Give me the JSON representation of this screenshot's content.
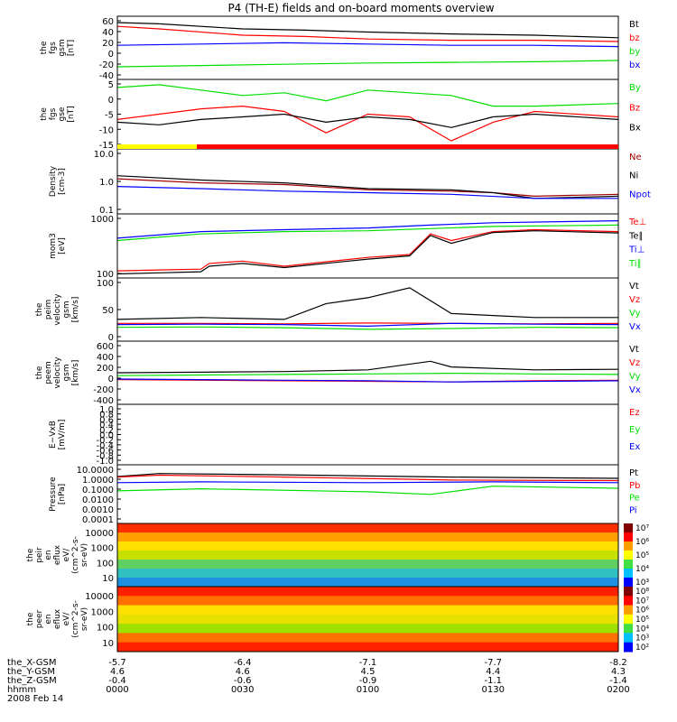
{
  "title": "P4 (TH-E) fields and on-board moments overview",
  "colors": {
    "black": "#000000",
    "red": "#ff0000",
    "green": "#00e000",
    "blue": "#0000ff",
    "yellow": "#ffff00",
    "darkred": "#a00000"
  },
  "chart_data": [
    {
      "type": "line",
      "ylabel": [
        "the",
        "fgs",
        "gsm",
        "[nT]"
      ],
      "ylim": [
        -40,
        60
      ],
      "yticks": [
        "60",
        "40",
        "20",
        "0",
        "-20",
        "-40"
      ],
      "legend": [
        {
          "name": "Bt",
          "color": "black"
        },
        {
          "name": "bz",
          "color": "red"
        },
        {
          "name": "by",
          "color": "green"
        },
        {
          "name": "bx",
          "color": "blue"
        }
      ],
      "series": [
        {
          "name": "Bt",
          "x": [
            0,
            10,
            30,
            45,
            60,
            80,
            100,
            120
          ],
          "y": [
            50,
            48,
            40,
            38,
            35,
            32,
            30,
            26
          ]
        },
        {
          "name": "bz",
          "x": [
            0,
            10,
            30,
            45,
            60,
            80,
            100,
            120
          ],
          "y": [
            44,
            40,
            30,
            28,
            24,
            22,
            22,
            20
          ]
        },
        {
          "name": "by",
          "x": [
            0,
            20,
            40,
            60,
            80,
            100,
            120
          ],
          "y": [
            -20,
            -18,
            -16,
            -14,
            -13,
            -12,
            -10
          ]
        },
        {
          "name": "bx",
          "x": [
            0,
            20,
            40,
            60,
            80,
            100,
            120
          ],
          "y": [
            14,
            16,
            18,
            16,
            14,
            14,
            12
          ]
        }
      ]
    },
    {
      "type": "line",
      "ylabel": [
        "the",
        "fgs",
        "gse",
        "[nT]"
      ],
      "ylim": [
        -18,
        8
      ],
      "yticks": [
        "5",
        "0",
        "-5",
        "-10",
        "-15"
      ],
      "legend": [
        {
          "name": "By",
          "color": "green"
        },
        {
          "name": "Bz",
          "color": "red"
        },
        {
          "name": "Bx",
          "color": "black"
        }
      ],
      "series": [
        {
          "name": "By",
          "x": [
            0,
            10,
            20,
            30,
            40,
            50,
            60,
            70,
            80,
            90,
            100,
            120
          ],
          "y": [
            5,
            6,
            4,
            2,
            3,
            0,
            4,
            3,
            2,
            -2,
            -2,
            -1
          ]
        },
        {
          "name": "Bz",
          "x": [
            0,
            10,
            20,
            30,
            40,
            50,
            60,
            70,
            80,
            90,
            100,
            120
          ],
          "y": [
            -7,
            -5,
            -3,
            -2,
            -4,
            -12,
            -5,
            -6,
            -15,
            -8,
            -4,
            -6
          ]
        },
        {
          "name": "Bx",
          "x": [
            0,
            10,
            20,
            30,
            40,
            50,
            60,
            70,
            80,
            90,
            100,
            120
          ],
          "y": [
            -8,
            -9,
            -7,
            -6,
            -5,
            -8,
            -6,
            -7,
            -10,
            -6,
            -5,
            -7
          ]
        }
      ]
    },
    {
      "type": "line",
      "log": true,
      "ylabel": [
        "Density",
        "[cm-3]"
      ],
      "ylim": [
        0.1,
        10
      ],
      "yticks": [
        "10.0",
        "1.0",
        "0.1"
      ],
      "legend": [
        {
          "name": "Ne",
          "color": "darkred"
        },
        {
          "name": "Ni",
          "color": "black"
        },
        {
          "name": "Npot",
          "color": "blue"
        }
      ],
      "series": [
        {
          "name": "Ne",
          "x": [
            0,
            20,
            40,
            60,
            80,
            90,
            100,
            120
          ],
          "y": [
            1.2,
            0.9,
            0.8,
            0.55,
            0.5,
            0.45,
            0.35,
            0.4
          ]
        },
        {
          "name": "Ni",
          "x": [
            0,
            20,
            40,
            60,
            80,
            90,
            100,
            120
          ],
          "y": [
            1.5,
            1.1,
            0.9,
            0.6,
            0.55,
            0.45,
            0.3,
            0.35
          ]
        },
        {
          "name": "Npot",
          "x": [
            0,
            20,
            40,
            60,
            80,
            100,
            120
          ],
          "y": [
            0.7,
            0.6,
            0.5,
            0.45,
            0.4,
            0.3,
            0.3
          ]
        }
      ]
    },
    {
      "type": "line",
      "log": true,
      "ylabel": [
        "mom3",
        "[eV]"
      ],
      "ylim": [
        80,
        12000
      ],
      "yticks": [
        "1000",
        "100"
      ],
      "legend": [
        {
          "name": "Te⊥",
          "color": "red"
        },
        {
          "name": "Te∥",
          "color": "black"
        },
        {
          "name": "Ti⊥",
          "color": "blue"
        },
        {
          "name": "Ti∥",
          "color": "green"
        }
      ],
      "series": [
        {
          "name": "Te⊥",
          "x": [
            0,
            10,
            20,
            22,
            30,
            40,
            60,
            70,
            75,
            80,
            90,
            100,
            120
          ],
          "y": [
            140,
            150,
            160,
            250,
            300,
            200,
            400,
            500,
            2500,
            1500,
            3000,
            3500,
            3000
          ]
        },
        {
          "name": "Te∥",
          "x": [
            0,
            10,
            20,
            22,
            30,
            40,
            60,
            70,
            75,
            80,
            90,
            100,
            120
          ],
          "y": [
            110,
            120,
            130,
            200,
            250,
            180,
            350,
            450,
            2200,
            1200,
            2800,
            3200,
            2700
          ]
        },
        {
          "name": "Ti⊥",
          "x": [
            0,
            20,
            40,
            60,
            75,
            90,
            120
          ],
          "y": [
            1800,
            3000,
            3500,
            4000,
            5000,
            6000,
            7000
          ]
        },
        {
          "name": "Ti∥",
          "x": [
            0,
            20,
            40,
            60,
            75,
            90,
            120
          ],
          "y": [
            1500,
            2500,
            3000,
            3200,
            3800,
            4500,
            5000
          ]
        }
      ]
    },
    {
      "type": "line",
      "ylabel": [
        "the",
        "peim",
        "velocity",
        "gsm",
        "[km/s]"
      ],
      "ylim": [
        -40,
        120
      ],
      "yticks": [
        "100",
        "50",
        "0"
      ],
      "legend": [
        {
          "name": "Vt",
          "color": "black"
        },
        {
          "name": "Vz",
          "color": "red"
        },
        {
          "name": "Vy",
          "color": "green"
        },
        {
          "name": "Vx",
          "color": "blue"
        }
      ],
      "series": [
        {
          "name": "Vt",
          "x": [
            0,
            20,
            40,
            50,
            60,
            70,
            80,
            90,
            100,
            120
          ],
          "y": [
            15,
            20,
            15,
            55,
            70,
            95,
            30,
            25,
            20,
            20
          ]
        },
        {
          "name": "Vz",
          "x": [
            0,
            20,
            40,
            60,
            80,
            100,
            120
          ],
          "y": [
            5,
            5,
            4,
            6,
            5,
            4,
            5
          ]
        },
        {
          "name": "Vy",
          "x": [
            0,
            20,
            40,
            60,
            80,
            100,
            120
          ],
          "y": [
            -5,
            -4,
            -6,
            -10,
            -8,
            -5,
            -6
          ]
        },
        {
          "name": "Vx",
          "x": [
            0,
            20,
            40,
            60,
            80,
            100,
            120
          ],
          "y": [
            2,
            3,
            2,
            -2,
            5,
            3,
            2
          ]
        }
      ]
    },
    {
      "type": "line",
      "ylabel": [
        "the",
        "peem",
        "velocity",
        "gsm",
        "[km/s]"
      ],
      "ylim": [
        -450,
        650
      ],
      "yticks": [
        "600",
        "400",
        "200",
        "0",
        "-200",
        "-400"
      ],
      "legend": [
        {
          "name": "Vt",
          "color": "black"
        },
        {
          "name": "Vz",
          "color": "red"
        },
        {
          "name": "Vy",
          "color": "green"
        },
        {
          "name": "Vx",
          "color": "blue"
        }
      ],
      "series": [
        {
          "name": "Vt",
          "x": [
            0,
            20,
            40,
            60,
            75,
            80,
            100,
            120
          ],
          "y": [
            100,
            110,
            120,
            150,
            300,
            200,
            150,
            160
          ]
        },
        {
          "name": "Vz",
          "x": [
            0,
            20,
            40,
            60,
            80,
            100,
            120
          ],
          "y": [
            -20,
            -30,
            -40,
            -50,
            -60,
            -40,
            -30
          ]
        },
        {
          "name": "Vy",
          "x": [
            0,
            20,
            40,
            60,
            80,
            100,
            120
          ],
          "y": [
            50,
            60,
            70,
            80,
            90,
            80,
            70
          ]
        },
        {
          "name": "Vx",
          "x": [
            0,
            20,
            40,
            60,
            80,
            100,
            120
          ],
          "y": [
            -10,
            -20,
            -30,
            -40,
            -60,
            -50,
            -40
          ]
        }
      ]
    },
    {
      "type": "line",
      "ylabel": [
        "E−VxB",
        "[mV/m]"
      ],
      "ylim": [
        -1.0,
        1.0
      ],
      "yticks": [
        "1.0",
        "0.8",
        "0.6",
        "0.4",
        "0.2",
        "0.0",
        "-0.2",
        "-0.4",
        "-0.6",
        "-0.8",
        "-1.0"
      ],
      "legend": [
        {
          "name": "Ez",
          "color": "red"
        },
        {
          "name": "Ey",
          "color": "green"
        },
        {
          "name": "Ex",
          "color": "blue"
        }
      ],
      "series": []
    },
    {
      "type": "line",
      "log": true,
      "ylabel": [
        "Pressure",
        "[nPa]"
      ],
      "ylim": [
        0.0001,
        10
      ],
      "yticks": [
        "10.0000",
        "1.0000",
        "0.1000",
        "0.0100",
        "0.0010",
        "0.0001"
      ],
      "legend": [
        {
          "name": "Pt",
          "color": "black"
        },
        {
          "name": "Pb",
          "color": "red"
        },
        {
          "name": "Pe",
          "color": "green"
        },
        {
          "name": "Pi",
          "color": "blue"
        }
      ],
      "series": [
        {
          "name": "Pt",
          "x": [
            0,
            10,
            40,
            80,
            120
          ],
          "y": [
            1.0,
            1.8,
            1.4,
            0.9,
            0.7
          ]
        },
        {
          "name": "Pb",
          "x": [
            0,
            10,
            40,
            80,
            120
          ],
          "y": [
            0.9,
            1.3,
            0.9,
            0.5,
            0.45
          ]
        },
        {
          "name": "Pe",
          "x": [
            0,
            20,
            60,
            75,
            90,
            120
          ],
          "y": [
            0.06,
            0.09,
            0.05,
            0.03,
            0.15,
            0.1
          ]
        },
        {
          "name": "Pi",
          "x": [
            0,
            20,
            60,
            90,
            120
          ],
          "y": [
            0.3,
            0.35,
            0.3,
            0.35,
            0.3
          ]
        }
      ]
    },
    {
      "type": "heatmap",
      "ylabel": [
        "the",
        "peir",
        "en",
        "eflux",
        "eV/",
        "(cm^2-s-",
        "sr-eV)"
      ],
      "yticks": [
        "10000",
        "1000",
        "100",
        "10"
      ],
      "colorbar_ticks": [
        "10⁷",
        "10⁶",
        "10⁵",
        "10⁴",
        "10³"
      ]
    },
    {
      "type": "heatmap",
      "ylabel": [
        "the",
        "peer",
        "en",
        "eflux",
        "eV/",
        "(cm^2-s-",
        "sr-eV)"
      ],
      "yticks": [
        "10000",
        "1000",
        "100",
        "10"
      ],
      "colorbar_ticks": [
        "10⁸",
        "10⁷",
        "10⁶",
        "10⁵",
        "10⁴",
        "10³",
        "10²"
      ]
    }
  ],
  "xaxis": {
    "rows": [
      {
        "label": "the_X-GSM",
        "values": [
          "-5.7",
          "-6.4",
          "-7.1",
          "-7.7",
          "-8.2"
        ]
      },
      {
        "label": "the_Y-GSM",
        "values": [
          "4.6",
          "4.6",
          "4.5",
          "4.4",
          "4.3"
        ]
      },
      {
        "label": "the_Z-GSM",
        "values": [
          "-0.4",
          "-0.6",
          "-0.9",
          "-1.1",
          "-1.4"
        ]
      },
      {
        "label": "hhmm",
        "values": [
          "0000",
          "0030",
          "0100",
          "0130",
          "0200"
        ]
      }
    ],
    "date": "2008 Feb 14"
  }
}
